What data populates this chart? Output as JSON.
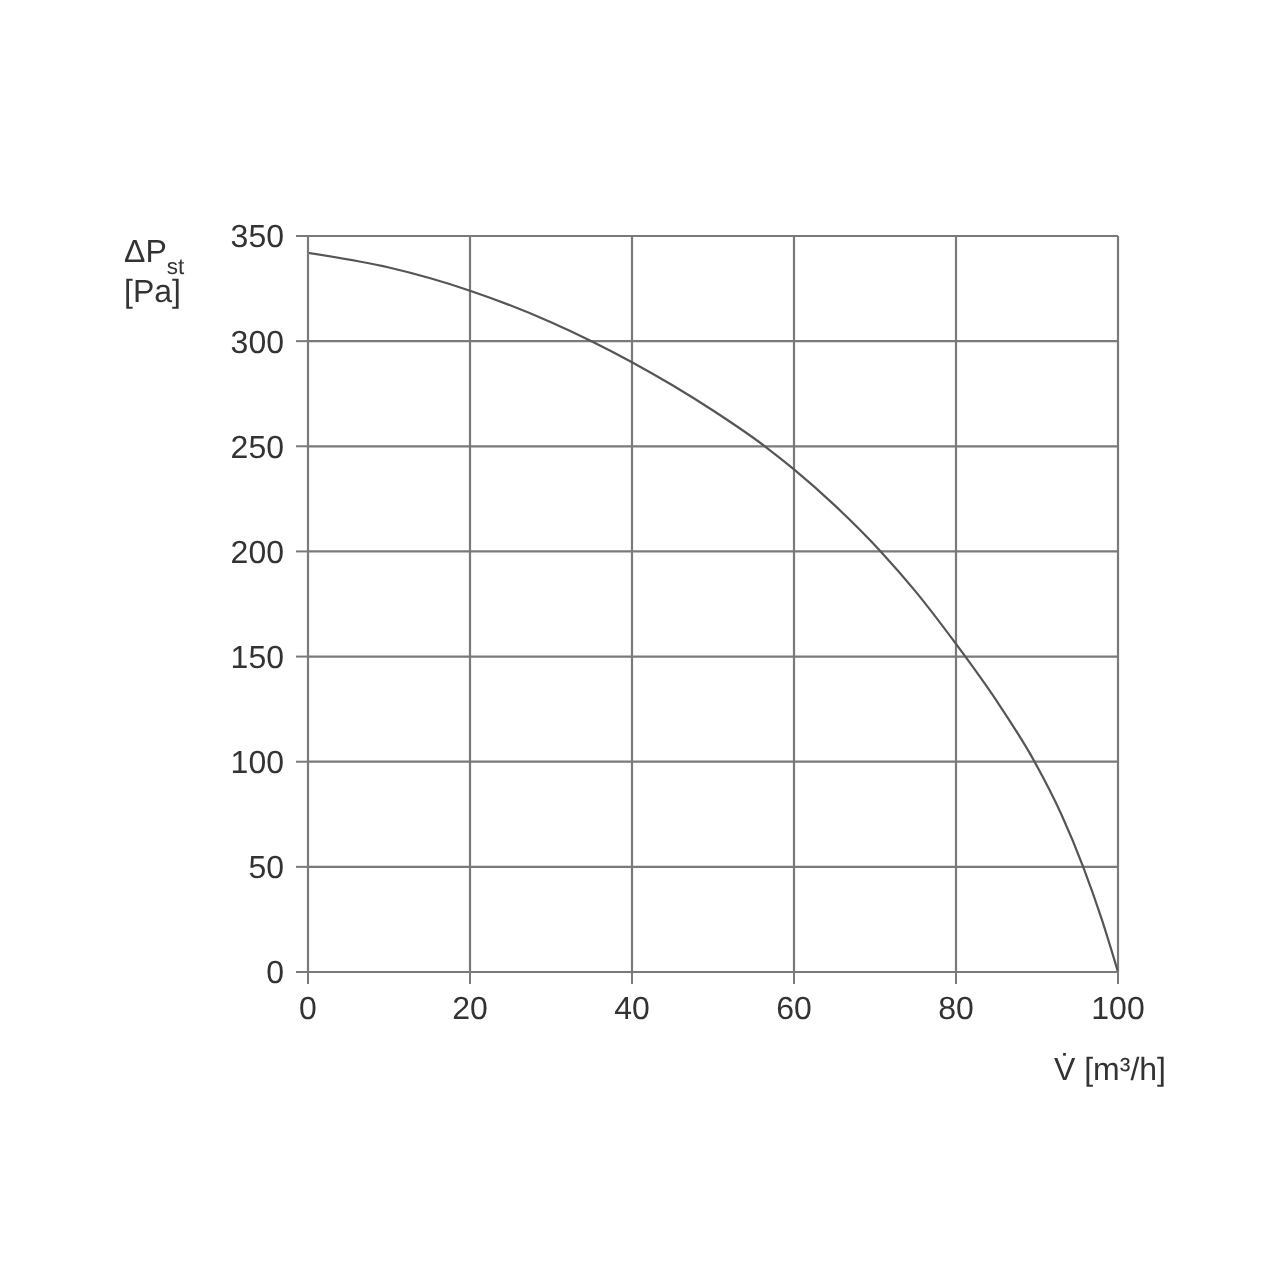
{
  "chart_data": {
    "type": "line",
    "xlabel": "V̇ [m³/h]",
    "ylabel": "ΔP$_{st}$ [Pa]",
    "x": [
      0,
      10,
      20,
      30,
      35,
      40,
      45,
      50,
      56.4,
      60,
      65,
      70.7,
      75,
      80,
      85,
      89.7,
      93,
      95.7,
      98,
      100
    ],
    "values": [
      342,
      335,
      324,
      309,
      300,
      290,
      279,
      267,
      250,
      239,
      222,
      200,
      181,
      156,
      129,
      100,
      75,
      50,
      25,
      0
    ],
    "color": "#555555",
    "line_style": "solid",
    "xlim": [
      0,
      100
    ],
    "ylim": [
      0,
      350
    ],
    "xticks": [
      0,
      20,
      40,
      60,
      80,
      100
    ],
    "yticks": [
      0,
      50,
      100,
      150,
      200,
      250,
      300,
      350
    ],
    "grid": true
  }
}
